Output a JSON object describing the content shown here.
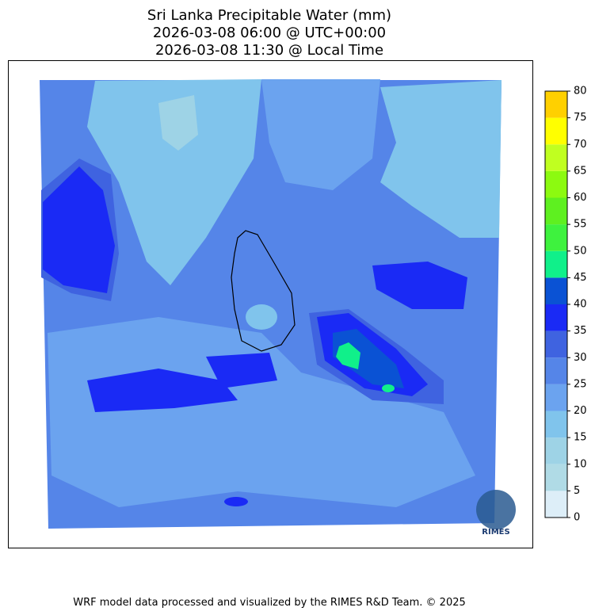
{
  "title": [
    "Sri Lanka Precipitable Water (mm)",
    "2026-03-08 06:00 @ UTC+00:00",
    "2026-03-08 11:30 @ Local Time"
  ],
  "colorbar": {
    "ticks": [
      0,
      5,
      10,
      15,
      20,
      25,
      30,
      35,
      40,
      45,
      50,
      55,
      60,
      65,
      70,
      75,
      80
    ],
    "colors": [
      "#ddeef8",
      "#b0dbe6",
      "#9ed3e6",
      "#80c4ec",
      "#6ba3ef",
      "#5585e8",
      "#3f63e0",
      "#1a2af5",
      "#0a52d4",
      "#10f08a",
      "#3ef23e",
      "#5ef020",
      "#8cfa10",
      "#c0ff20",
      "#ffff00",
      "#ffd000"
    ]
  },
  "logo": "RIMES",
  "footer": "WRF model data processed and visualized by the RIMES R&D Team. © 2025"
}
